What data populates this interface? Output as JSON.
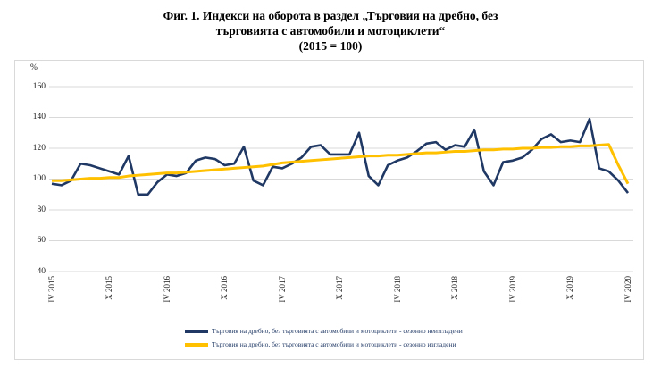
{
  "figure": {
    "title_line1": "Фиг. 1. Индекси на оборота в раздел „Търговия на дребно, без",
    "title_line2": "търговията с автомобили и мотоциклети“",
    "title_line3": "(2015 = 100)"
  },
  "colors": {
    "unadjusted_line": "#1f3864",
    "adjusted_line": "#ffc000",
    "gridline": "#d9d9d9",
    "box_border": "#d9d9d9",
    "legend_text": "#1f3864"
  },
  "chart_data": {
    "type": "line",
    "title": "Фиг. 1. Индекси на оборота в раздел „Търговия на дребно, без търговията с автомобили и мотоциклети“ (2015 = 100)",
    "ylabel": "%",
    "xlabel": "",
    "ylim": [
      40,
      160
    ],
    "y_ticks": [
      160,
      140,
      120,
      100,
      80,
      60,
      40
    ],
    "grid": true,
    "legend_position": "bottom",
    "x_tick_labels": [
      "IV 2015",
      "X 2015",
      "IV 2016",
      "X 2016",
      "IV 2017",
      "X 2017",
      "IV 2018",
      "X 2018",
      "IV 2019",
      "X 2019",
      "IV 2020"
    ],
    "x": [
      "IV 2015",
      "V 2015",
      "VI 2015",
      "VII 2015",
      "VIII 2015",
      "IX 2015",
      "X 2015",
      "XI 2015",
      "XII 2015",
      "I 2016",
      "II 2016",
      "III 2016",
      "IV 2016",
      "V 2016",
      "VI 2016",
      "VII 2016",
      "VIII 2016",
      "IX 2016",
      "X 2016",
      "XI 2016",
      "XII 2016",
      "I 2017",
      "II 2017",
      "III 2017",
      "IV 2017",
      "V 2017",
      "VI 2017",
      "VII 2017",
      "VIII 2017",
      "IX 2017",
      "X 2017",
      "XI 2017",
      "XII 2017",
      "I 2018",
      "II 2018",
      "III 2018",
      "IV 2018",
      "V 2018",
      "VI 2018",
      "VII 2018",
      "VIII 2018",
      "IX 2018",
      "X 2018",
      "XI 2018",
      "XII 2018",
      "I 2019",
      "II 2019",
      "III 2019",
      "IV 2019",
      "V 2019",
      "VI 2019",
      "VII 2019",
      "VIII 2019",
      "IX 2019",
      "X 2019",
      "XI 2019",
      "XII 2019",
      "I 2020",
      "II 2020",
      "III 2020",
      "IV 2020"
    ],
    "series": [
      {
        "name": "Търговия на дребно, без търговията с автомобили и мотоциклети - сезонно неизгладени",
        "color": "#1f3864",
        "stroke_width": 2.6,
        "values": [
          97,
          96,
          99,
          110,
          109,
          107,
          105,
          103,
          115,
          90,
          90,
          98,
          103,
          102,
          104,
          112,
          114,
          113,
          109,
          110,
          121,
          99,
          96,
          108,
          107,
          110,
          114,
          121,
          122,
          116,
          116,
          116,
          130,
          102,
          96,
          109,
          112,
          114,
          118,
          123,
          124,
          119,
          122,
          121,
          132,
          105,
          96,
          111,
          112,
          114,
          119,
          126,
          129,
          124,
          125,
          124,
          139,
          107,
          105,
          99,
          91
        ]
      },
      {
        "name": "Търговия на дребно, без търговията с автомобили и мотоциклети - сезонно изгладени",
        "color": "#ffc000",
        "stroke_width": 3,
        "values": [
          99,
          99,
          99.5,
          100,
          100.5,
          100.5,
          101,
          101,
          102,
          102.5,
          103,
          103.5,
          104,
          104,
          104.5,
          105,
          105.5,
          106,
          106.5,
          107,
          107.5,
          108,
          108.5,
          109.5,
          110.5,
          111,
          111.5,
          112,
          112.5,
          113,
          113.5,
          114,
          114.5,
          115,
          115,
          115.5,
          115.5,
          116,
          116.5,
          117,
          117,
          117.5,
          118,
          118,
          118.5,
          119,
          119,
          119.5,
          119.5,
          120,
          120,
          120.5,
          120.5,
          121,
          121,
          121.5,
          121.5,
          122,
          122.5,
          109,
          97
        ]
      }
    ]
  }
}
